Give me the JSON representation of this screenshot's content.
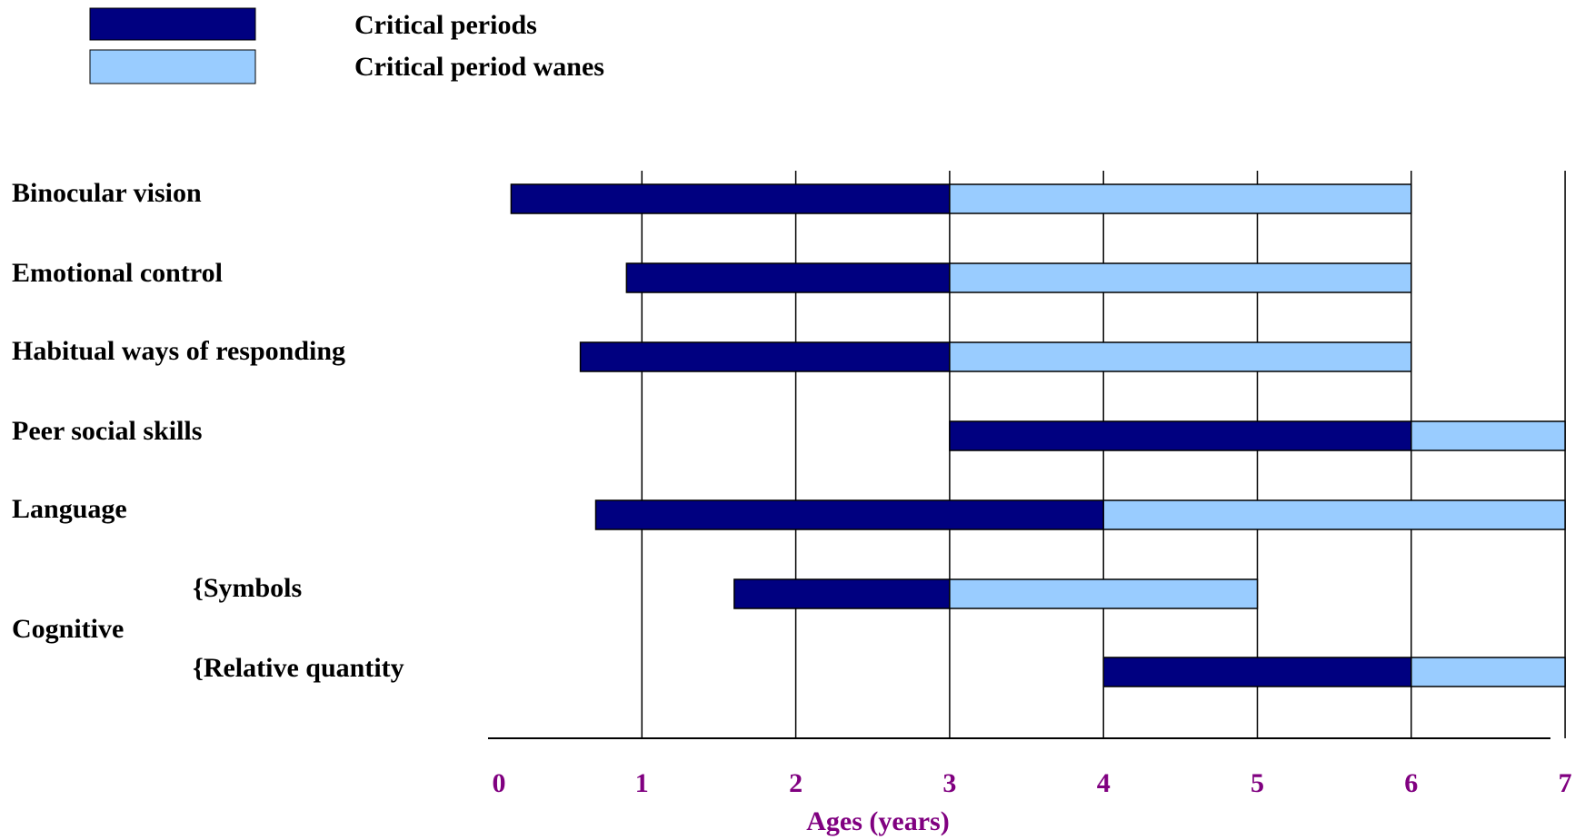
{
  "chart_data": {
    "type": "bar",
    "subtype": "horizontal-stacked-range",
    "xlabel": "Ages (years)",
    "xlim": [
      0,
      7
    ],
    "x_ticks": [
      "0",
      "1",
      "2",
      "3",
      "4",
      "5",
      "6",
      "7"
    ],
    "grid": "vertical",
    "legend": {
      "placement": "top-left",
      "entries": [
        {
          "label": "Critical periods",
          "color": "#000080"
        },
        {
          "label": "Critical period wanes",
          "color": "#99ccff"
        }
      ]
    },
    "rows": [
      {
        "label": "Binocular vision",
        "critical_start": 0.15,
        "critical_end": 3,
        "wanes_end": 6
      },
      {
        "label": "Emotional control",
        "critical_start": 0.9,
        "critical_end": 3,
        "wanes_end": 6
      },
      {
        "label": "Habitual ways of responding",
        "critical_start": 0.6,
        "critical_end": 3,
        "wanes_end": 6
      },
      {
        "label": "Peer social skills",
        "critical_start": 3,
        "critical_end": 6,
        "wanes_end": 7
      },
      {
        "label": "Language",
        "critical_start": 0.7,
        "critical_end": 4,
        "wanes_end": 7
      },
      {
        "label": "{Symbols",
        "group": "Cognitive",
        "critical_start": 1.6,
        "critical_end": 3,
        "wanes_end": 5
      },
      {
        "label": "{Relative quantity",
        "group": "Cognitive",
        "critical_start": 4,
        "critical_end": 6,
        "wanes_end": 7
      }
    ],
    "group_label": "Cognitive"
  }
}
